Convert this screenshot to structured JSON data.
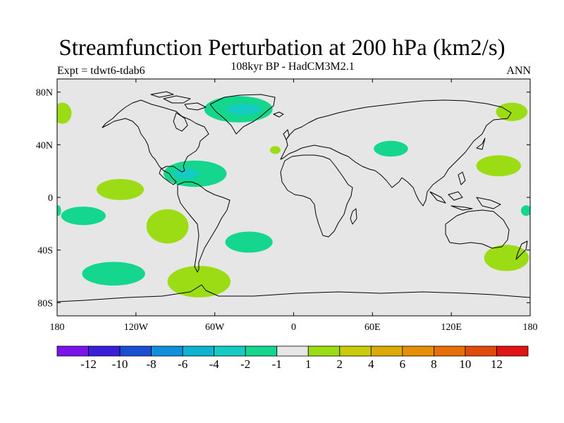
{
  "title": "Streamfunction Perturbation at 200 hPa (km2/s)",
  "subtitle_left": "Expt = tdwt6-tdab6",
  "subtitle_center": "108kyr BP - HadCM3M2.1",
  "subtitle_right": "ANN",
  "map": {
    "lon_range": [
      -180,
      180
    ],
    "lat_range": [
      -90,
      90
    ],
    "x_ticks": [
      {
        "lon": -180,
        "label": "180"
      },
      {
        "lon": -120,
        "label": "120W"
      },
      {
        "lon": -60,
        "label": "60W"
      },
      {
        "lon": 0,
        "label": "0"
      },
      {
        "lon": 60,
        "label": "60E"
      },
      {
        "lon": 120,
        "label": "120E"
      },
      {
        "lon": 180,
        "label": "180"
      }
    ],
    "y_ticks": [
      {
        "lat": 80,
        "label": "80N"
      },
      {
        "lat": 40,
        "label": "40N"
      },
      {
        "lat": 0,
        "label": "0"
      },
      {
        "lat": -40,
        "label": "40S"
      },
      {
        "lat": -80,
        "label": "80S"
      }
    ],
    "background_color": "#e6e6e6"
  },
  "colorbar": {
    "colors": [
      "#7a14e8",
      "#3a1fd8",
      "#1a4fd4",
      "#0f8fdc",
      "#0fb3d2",
      "#14ccc4",
      "#14d68c",
      "#e6e6e6",
      "#9cdc14",
      "#c8cc0a",
      "#dcab0a",
      "#e69008",
      "#e66f08",
      "#e04a0a",
      "#e01414"
    ],
    "labels": [
      "-12",
      "-10",
      "-8",
      "-6",
      "-4",
      "-2",
      "-1",
      "1",
      "2",
      "4",
      "6",
      "8",
      "10",
      "12"
    ]
  },
  "anomaly_regions": [
    {
      "name": "north-atlantic-greenland-negative",
      "lon": -42,
      "lat": 67,
      "rlon": 26,
      "rlat": 10,
      "color": "#14d68c"
    },
    {
      "name": "greenland-core-negative",
      "lon": -38,
      "lat": 67,
      "rlon": 13,
      "rlat": 4,
      "color": "#14ccc4"
    },
    {
      "name": "caribbean-negative",
      "lon": -75,
      "lat": 18,
      "rlon": 24,
      "rlat": 10,
      "color": "#14d68c"
    },
    {
      "name": "caribbean-core-negative",
      "lon": -82,
      "lat": 18,
      "rlon": 10,
      "rlat": 4,
      "color": "#14ccc4"
    },
    {
      "name": "tropical-pacific-positive",
      "lon": -132,
      "lat": 6,
      "rlon": 18,
      "rlat": 8,
      "color": "#9cdc14"
    },
    {
      "name": "south-pacific-subtropical-negative",
      "lon": -160,
      "lat": -14,
      "rlon": 17,
      "rlat": 7,
      "color": "#14d68c"
    },
    {
      "name": "south-america-west-positive",
      "lon": -96,
      "lat": -22,
      "rlon": 16,
      "rlat": 13,
      "color": "#9cdc14"
    },
    {
      "name": "south-atlantic-negative",
      "lon": -34,
      "lat": -34,
      "rlon": 18,
      "rlat": 8,
      "color": "#14d68c"
    },
    {
      "name": "south-pacific-midlat-negative",
      "lon": -137,
      "lat": -58,
      "rlon": 24,
      "rlat": 9,
      "color": "#14d68c"
    },
    {
      "name": "drake-passage-positive",
      "lon": -72,
      "lat": -64,
      "rlon": 24,
      "rlat": 12,
      "color": "#9cdc14"
    },
    {
      "name": "central-asia-negative",
      "lon": 74,
      "lat": 37,
      "rlon": 13,
      "rlat": 6,
      "color": "#14d68c"
    },
    {
      "name": "west-pacific-positive",
      "lon": 156,
      "lat": 24,
      "rlon": 17,
      "rlat": 8,
      "color": "#9cdc14"
    },
    {
      "name": "north-pacific-east-positive",
      "lon": 166,
      "lat": 65,
      "rlon": 12,
      "rlat": 7,
      "color": "#9cdc14"
    },
    {
      "name": "north-pacific-west-positive",
      "lon": -176,
      "lat": 64,
      "rlon": 7,
      "rlat": 8,
      "color": "#9cdc14"
    },
    {
      "name": "tasman-positive",
      "lon": 162,
      "lat": -46,
      "rlon": 17,
      "rlat": 10,
      "color": "#9cdc14"
    },
    {
      "name": "south-pacific-edge-negative",
      "lon": 177,
      "lat": -10,
      "rlon": 4,
      "rlat": 4,
      "color": "#14d68c"
    },
    {
      "name": "south-pacific-edge-negative-west",
      "lon": -179,
      "lat": -10,
      "rlon": 2,
      "rlat": 4,
      "color": "#14d68c"
    },
    {
      "name": "mediterranean-small-positive",
      "lon": -14,
      "lat": 36,
      "rlon": 4,
      "rlat": 3,
      "color": "#9cdc14"
    }
  ]
}
